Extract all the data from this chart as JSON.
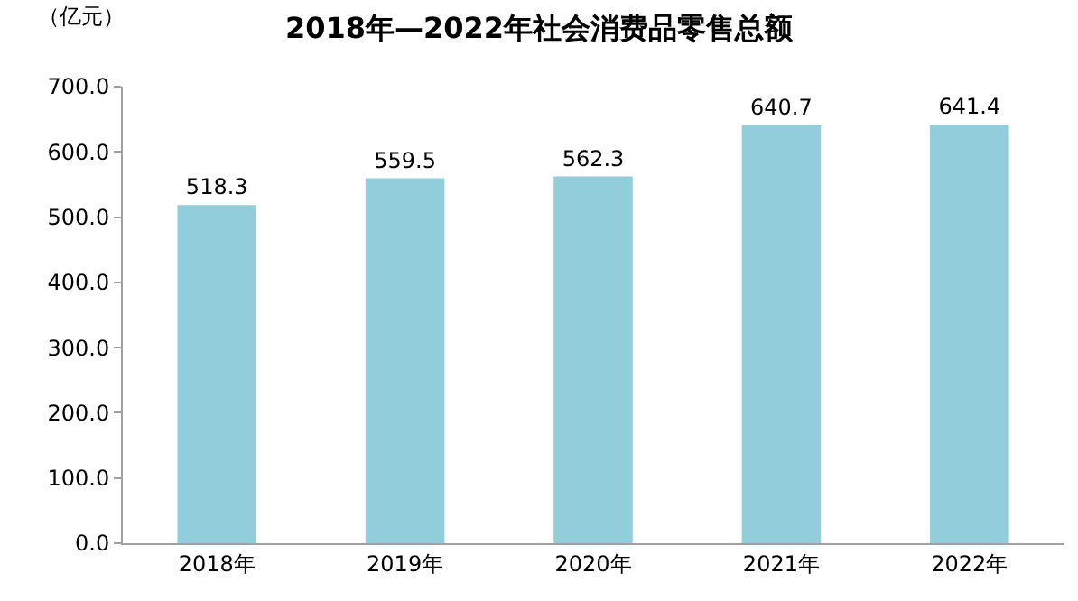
{
  "chart_data": {
    "type": "bar",
    "title": "2018年—2022年社会消费品零售总额",
    "ylabel": "（亿元）",
    "categories": [
      "2018年",
      "2019年",
      "2020年",
      "2021年",
      "2022年"
    ],
    "values": [
      518.3,
      559.5,
      562.3,
      640.7,
      641.4
    ],
    "value_labels": [
      "518.3",
      "559.5",
      "562.3",
      "640.7",
      "641.4"
    ],
    "color": "#92cddc",
    "ylim": [
      0,
      700
    ],
    "yticks": [
      {
        "value": 0,
        "label": "0.0"
      },
      {
        "value": 100,
        "label": "100.0"
      },
      {
        "value": 200,
        "label": "200.0"
      },
      {
        "value": 300,
        "label": "300.0"
      },
      {
        "value": 400,
        "label": "400.0"
      },
      {
        "value": 500,
        "label": "500.0"
      },
      {
        "value": 600,
        "label": "600.0"
      },
      {
        "value": 700,
        "label": "700.0"
      }
    ]
  }
}
